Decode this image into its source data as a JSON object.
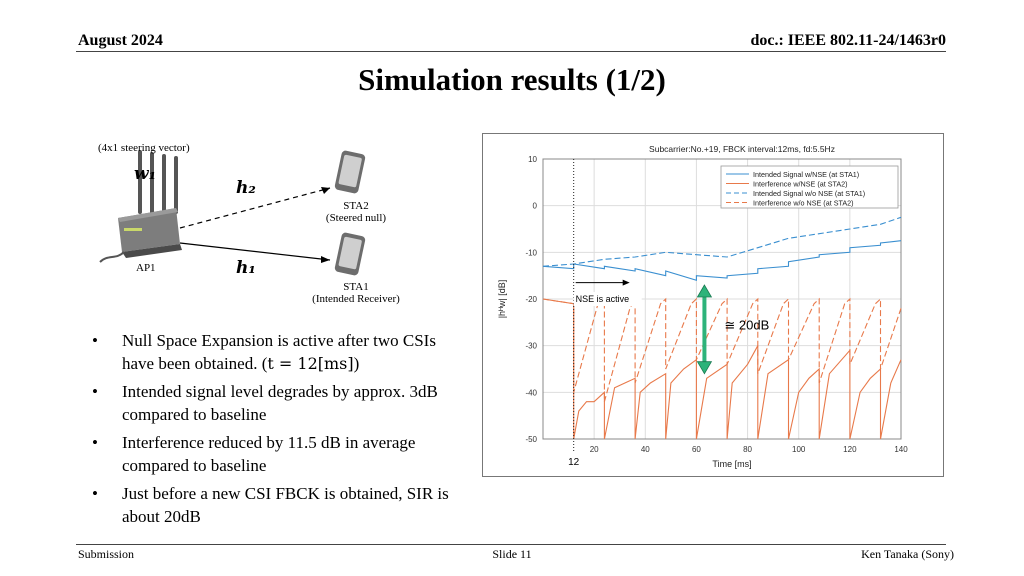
{
  "header": {
    "date": "August 2024",
    "doc": "doc.: IEEE 802.11-24/1463r0"
  },
  "title": "Simulation results (1/2)",
  "diagram": {
    "steering_vector_label": "(4x1 steering vector)",
    "w1_label": "w₁",
    "h2_label": "h₂",
    "h1_label": "h₁",
    "ap_label": "AP1",
    "sta2_name": "STA2",
    "sta2_role": "(Steered null)",
    "sta1_name": "STA1",
    "sta1_role": "(Intended Receiver)"
  },
  "bullets": [
    {
      "text": "Null Space Expansion is active after two CSIs have been obtained. (",
      "math": "t = 12[ms]",
      "after": ")"
    },
    {
      "text": "Intended signal level degrades by approx. 3dB compared to baseline"
    },
    {
      "text": "Interference reduced by 11.5 dB in average compared to baseline"
    },
    {
      "text": "Just before a new CSI FBCK is obtained, SIR is about 20dB"
    }
  ],
  "bullet_marker": "•",
  "chart_data": {
    "type": "line",
    "title": "Subcarrier:No.+19,  FBCK interval:12ms,  fd:5.5Hz",
    "xlabel": "Time [ms]",
    "ylabel": "|hᴴw| [dB]",
    "xlim": [
      0,
      140
    ],
    "ylim": [
      -50,
      10
    ],
    "xticks": [
      20,
      40,
      60,
      80,
      100,
      120,
      140
    ],
    "yticks": [
      10,
      0,
      -10,
      -20,
      -30,
      -40,
      -50
    ],
    "legend_position": "top-right",
    "series": [
      {
        "name": "Intended Signal w/NSE (at STA1)",
        "color": "#3a8fd0",
        "dashed": false,
        "x": [
          0,
          12,
          12,
          24,
          24,
          36,
          36,
          48,
          48,
          60,
          60,
          72,
          72,
          84,
          84,
          96,
          96,
          108,
          108,
          120,
          120,
          132,
          132,
          140
        ],
        "y": [
          -13,
          -13.5,
          -12.5,
          -13.5,
          -13,
          -14,
          -13.5,
          -15,
          -14,
          -16,
          -15,
          -15.5,
          -15,
          -14.5,
          -13.5,
          -13,
          -12,
          -11,
          -10.5,
          -10,
          -9,
          -8.5,
          -8,
          -7.5
        ]
      },
      {
        "name": "Interference w/NSE (at STA2)",
        "color": "#e8794a",
        "dashed": false,
        "x": [
          0,
          12,
          12,
          14,
          17,
          20,
          24,
          24,
          28,
          36,
          36,
          38,
          42,
          48,
          48,
          50,
          55,
          60,
          60,
          64,
          72,
          72,
          74,
          80,
          84,
          84,
          88,
          96,
          96,
          100,
          104,
          108,
          108,
          112,
          120,
          120,
          124,
          128,
          132,
          132,
          136,
          140
        ],
        "y": [
          -20,
          -21,
          -50,
          -44,
          -42,
          -42,
          -40,
          -50,
          -39,
          -37,
          -50,
          -40,
          -38,
          -36,
          -50,
          -38,
          -35,
          -33,
          -50,
          -37,
          -34,
          -50,
          -38,
          -34,
          -30,
          -50,
          -36,
          -33,
          -50,
          -40,
          -37,
          -35,
          -50,
          -36,
          -31,
          -50,
          -40,
          -37,
          -35,
          -50,
          -38,
          -33
        ]
      },
      {
        "name": "Intended Signal w/o NSE (at STA1)",
        "color": "#3a8fd0",
        "dashed": true,
        "x": [
          0,
          12,
          24,
          36,
          48,
          60,
          72,
          84,
          96,
          108,
          120,
          132,
          140
        ],
        "y": [
          -13,
          -12.5,
          -11.5,
          -11,
          -10,
          -10.5,
          -11,
          -9,
          -7,
          -6,
          -5,
          -4,
          -2.5
        ]
      },
      {
        "name": "Interference w/o NSE (at STA2)",
        "color": "#e8794a",
        "dashed": true,
        "x": [
          0,
          12,
          12,
          22,
          24,
          24,
          34,
          36,
          36,
          46,
          48,
          48,
          58,
          60,
          60,
          70,
          72,
          72,
          82,
          84,
          84,
          94,
          96,
          96,
          106,
          108,
          108,
          118,
          120,
          120,
          130,
          132,
          132,
          140
        ],
        "y": [
          -20,
          -21,
          -40,
          -20,
          -20,
          -42,
          -22,
          -20,
          -38,
          -21,
          -20,
          -35,
          -21,
          -20,
          -33,
          -21,
          -20,
          -34,
          -21,
          -20,
          -36,
          -21,
          -20,
          -33,
          -21,
          -20,
          -38,
          -21,
          -20,
          -34,
          -21,
          -20,
          -35,
          -22
        ]
      }
    ],
    "marker_x": 12,
    "marker_label": "12",
    "annotation_text": "NSE is active",
    "sir_label": "≅ 20dB",
    "sir_arrow_color": "#2db37a",
    "sir_arrow_x": 60,
    "sir_arrow_y": [
      -17,
      -36
    ]
  },
  "footer": {
    "left": "Submission",
    "center": "Slide 11",
    "right": "Ken Tanaka (Sony)"
  }
}
